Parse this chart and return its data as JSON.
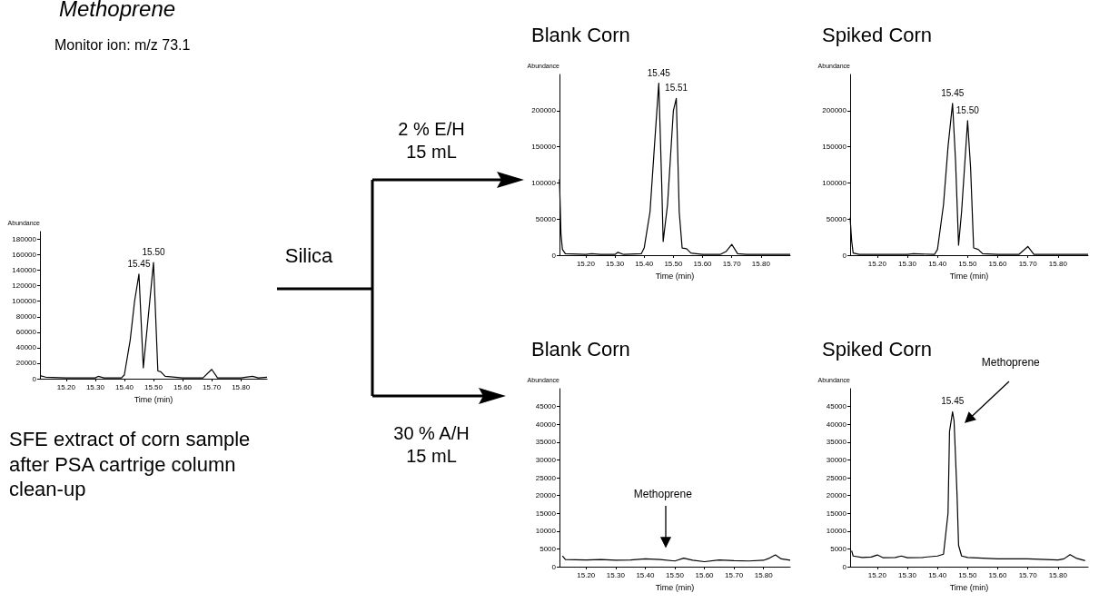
{
  "chart_data": [
    {
      "type": "line",
      "title": "Methoprene",
      "subtitle": "Monitor ion: m/z 73.1",
      "xlabel": "Time (min)",
      "ylabel": "Abundance",
      "color": "#000000",
      "marker": "none",
      "line_style": "solid",
      "x": [
        15.11,
        15.13,
        15.2,
        15.3,
        15.31,
        15.33,
        15.39,
        15.4,
        15.42,
        15.435,
        15.45,
        15.465,
        15.5,
        15.515,
        15.525,
        15.54,
        15.6,
        15.67,
        15.7,
        15.72,
        15.8,
        15.84,
        15.86,
        15.89
      ],
      "values": [
        4000,
        2000,
        1000,
        1000,
        3000,
        1000,
        1000,
        5000,
        50000,
        100000,
        135000,
        14000,
        150000,
        10000,
        9000,
        3000,
        1000,
        1000,
        12000,
        1000,
        1000,
        3000,
        1000,
        2000
      ],
      "xlim": [
        15.11,
        15.89
      ],
      "xticks": [
        {
          "value": 15.2,
          "label": "15.20"
        },
        {
          "value": 15.3,
          "label": "15.30"
        },
        {
          "value": 15.4,
          "label": "15.40"
        },
        {
          "value": 15.5,
          "label": "15.50"
        },
        {
          "value": 15.6,
          "label": "15.60"
        },
        {
          "value": 15.7,
          "label": "15.70"
        },
        {
          "value": 15.8,
          "label": "15.80"
        }
      ],
      "ylim": [
        0,
        190000
      ],
      "yticks": [
        0,
        20000,
        40000,
        60000,
        80000,
        100000,
        120000,
        140000,
        160000,
        180000
      ],
      "annotations": [
        {
          "text": "15.45",
          "x": 15.45,
          "y": 135000
        },
        {
          "text": "15.50",
          "x": 15.5,
          "y": 150000
        },
        "SFE extract of corn sample after PSA cartrige column clean-up",
        "Silica",
        "2 % E/H 15 mL",
        "30 % A/H 15 mL"
      ]
    },
    {
      "type": "line",
      "title": "Blank Corn",
      "xlabel": "Time (min)",
      "ylabel": "Abundance",
      "color": "#000000",
      "marker": "none",
      "line_style": "solid",
      "x": [
        15.11,
        15.115,
        15.12,
        15.13,
        15.2,
        15.22,
        15.25,
        15.3,
        15.31,
        15.33,
        15.39,
        15.4,
        15.42,
        15.435,
        15.45,
        15.46,
        15.465,
        15.48,
        15.5,
        15.51,
        15.52,
        15.53,
        15.545,
        15.56,
        15.6,
        15.66,
        15.68,
        15.7,
        15.72,
        15.75,
        15.9
      ],
      "values": [
        105000,
        30000,
        8000,
        2000,
        1000,
        2000,
        1000,
        1000,
        4000,
        1000,
        2000,
        10000,
        60000,
        150000,
        238000,
        100000,
        19000,
        70000,
        200000,
        217000,
        60000,
        10000,
        9000,
        3000,
        1000,
        1000,
        5000,
        15000,
        2000,
        1000,
        1000
      ],
      "xlim": [
        15.11,
        15.9
      ],
      "xticks": [
        {
          "value": 15.2,
          "label": "15.20"
        },
        {
          "value": 15.3,
          "label": "15.30"
        },
        {
          "value": 15.4,
          "label": "15.40"
        },
        {
          "value": 15.5,
          "label": "15.50"
        },
        {
          "value": 15.6,
          "label": "15.60"
        },
        {
          "value": 15.7,
          "label": "15.70"
        },
        {
          "value": 15.8,
          "label": "15.80"
        }
      ],
      "ylim": [
        0,
        250000
      ],
      "yticks": [
        0,
        50000,
        100000,
        150000,
        200000
      ],
      "annotations": [
        {
          "text": "15.45",
          "x": 15.45,
          "y": 238000
        },
        {
          "text": "15.51",
          "x": 15.51,
          "y": 217000
        }
      ]
    },
    {
      "type": "line",
      "title": "Spiked Corn",
      "xlabel": "Time (min)",
      "ylabel": "Abundance",
      "color": "#000000",
      "marker": "none",
      "line_style": "solid",
      "x": [
        15.11,
        15.115,
        15.12,
        15.14,
        15.3,
        15.32,
        15.39,
        15.4,
        15.42,
        15.435,
        15.45,
        15.46,
        15.47,
        15.48,
        15.5,
        15.51,
        15.52,
        15.535,
        15.55,
        15.6,
        15.67,
        15.7,
        15.72,
        15.9
      ],
      "values": [
        52000,
        20000,
        3000,
        1000,
        1000,
        2000,
        1000,
        8000,
        70000,
        150000,
        210000,
        130000,
        14000,
        60000,
        186000,
        120000,
        10000,
        8000,
        2000,
        1000,
        1000,
        12000,
        1000,
        1000
      ],
      "xlim": [
        15.11,
        15.9
      ],
      "xticks": [
        {
          "value": 15.2,
          "label": "15.20"
        },
        {
          "value": 15.3,
          "label": "15.30"
        },
        {
          "value": 15.4,
          "label": "15.40"
        },
        {
          "value": 15.5,
          "label": "15.50"
        },
        {
          "value": 15.6,
          "label": "15.60"
        },
        {
          "value": 15.7,
          "label": "15.70"
        },
        {
          "value": 15.8,
          "label": "15.80"
        }
      ],
      "ylim": [
        0,
        250000
      ],
      "yticks": [
        0,
        50000,
        100000,
        150000,
        200000
      ],
      "annotations": [
        {
          "text": "15.45",
          "x": 15.45,
          "y": 210000
        },
        {
          "text": "15.50",
          "x": 15.5,
          "y": 186000
        }
      ]
    },
    {
      "type": "line",
      "title": "Blank Corn",
      "xlabel": "Time (min)",
      "ylabel": "Abundance",
      "color": "#000000",
      "marker": "none",
      "line_style": "solid",
      "x": [
        15.12,
        15.13,
        15.2,
        15.25,
        15.3,
        15.35,
        15.4,
        15.45,
        15.5,
        15.53,
        15.56,
        15.6,
        15.65,
        15.7,
        15.75,
        15.8,
        15.82,
        15.84,
        15.86,
        15.89
      ],
      "values": [
        3000,
        2000,
        1900,
        2000,
        1800,
        1900,
        2200,
        2000,
        1600,
        2400,
        1800,
        1400,
        1900,
        1700,
        1600,
        1800,
        2400,
        3300,
        2200,
        1800
      ],
      "xlim": [
        15.11,
        15.89
      ],
      "xticks": [
        {
          "value": 15.2,
          "label": "15.20"
        },
        {
          "value": 15.3,
          "label": "15.30"
        },
        {
          "value": 15.4,
          "label": "15.40"
        },
        {
          "value": 15.5,
          "label": "15.50"
        },
        {
          "value": 15.6,
          "label": "15.60"
        },
        {
          "value": 15.7,
          "label": "15.70"
        },
        {
          "value": 15.8,
          "label": "15.80"
        }
      ],
      "ylim": [
        0,
        50000
      ],
      "yticks": [
        0,
        5000,
        10000,
        15000,
        20000,
        25000,
        30000,
        35000,
        40000,
        45000
      ],
      "annotations": [
        "Methoprene"
      ]
    },
    {
      "type": "line",
      "title": "Spiked Corn",
      "xlabel": "Time (min)",
      "ylabel": "Abundance",
      "color": "#000000",
      "marker": "none",
      "line_style": "solid",
      "x": [
        15.115,
        15.12,
        15.15,
        15.18,
        15.2,
        15.22,
        15.26,
        15.28,
        15.3,
        15.35,
        15.4,
        15.42,
        15.435,
        15.44,
        15.45,
        15.455,
        15.465,
        15.47,
        15.48,
        15.5,
        15.6,
        15.7,
        15.8,
        15.82,
        15.84,
        15.86,
        15.89
      ],
      "values": [
        4500,
        3000,
        2600,
        2700,
        3300,
        2500,
        2600,
        3000,
        2500,
        2600,
        3000,
        3500,
        15000,
        38000,
        43500,
        41000,
        20000,
        6000,
        3000,
        2600,
        2200,
        2200,
        1900,
        2200,
        3400,
        2400,
        1700
      ],
      "xlim": [
        15.11,
        15.9
      ],
      "xticks": [
        {
          "value": 15.2,
          "label": "15.20"
        },
        {
          "value": 15.3,
          "label": "15.30"
        },
        {
          "value": 15.4,
          "label": "15.40"
        },
        {
          "value": 15.5,
          "label": "15.50"
        },
        {
          "value": 15.6,
          "label": "15.60"
        },
        {
          "value": 15.7,
          "label": "15.70"
        },
        {
          "value": 15.8,
          "label": "15.80"
        }
      ],
      "ylim": [
        0,
        50000
      ],
      "yticks": [
        0,
        5000,
        10000,
        15000,
        20000,
        25000,
        30000,
        35000,
        40000,
        45000
      ],
      "annotations": [
        {
          "text": "15.45",
          "x": 15.45,
          "y": 43500
        },
        "Methoprene"
      ]
    }
  ]
}
